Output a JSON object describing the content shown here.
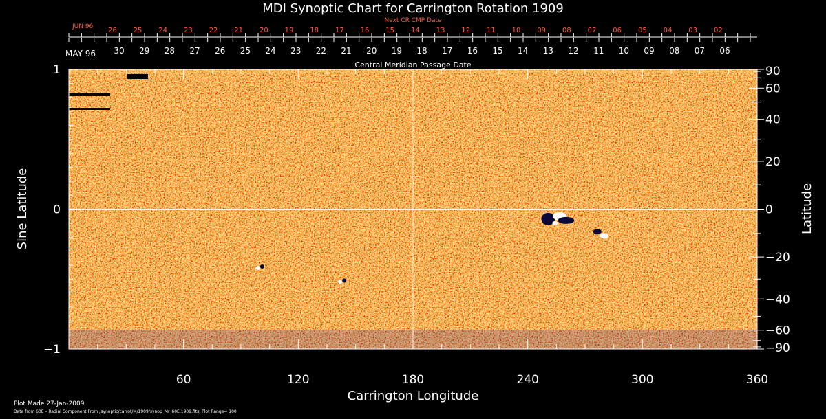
{
  "colors": {
    "background": "#000000",
    "axis": "#ffffff",
    "next_cr_dates": "#ff5a3a",
    "field_positive": "#ffffff",
    "field_negative": "#0a0a3a",
    "field_background": "#ef5a1a"
  },
  "chart_data": {
    "type": "heatmap",
    "title": "MDI Synoptic Chart for Carrington Rotation 1909",
    "xlabel": "Carrington Longitude",
    "ylabel_left": "Sine Latitude",
    "ylabel_right": "Latitude",
    "xlim": [
      0,
      360
    ],
    "ylim": [
      -1,
      1
    ],
    "x_ticks": [
      "60",
      "120",
      "180",
      "240",
      "300",
      "360"
    ],
    "y_ticks_left": [
      "1",
      "0",
      "−1"
    ],
    "y_ticks_right": [
      "90",
      "60",
      "40",
      "20",
      "0",
      "−20",
      "−40",
      "−60",
      "−90"
    ],
    "y_ticks_right_values": [
      90,
      60,
      40,
      20,
      0,
      -20,
      -40,
      -60,
      -90
    ],
    "grid": {
      "vertical_line_at": 180,
      "horizontal_line_at": 0
    },
    "next_cr_axis": {
      "label": "Next CR CMP Date",
      "month": "JUN 96",
      "dates": [
        "26",
        "25",
        "24",
        "23",
        "22",
        "21",
        "20",
        "19",
        "18",
        "17",
        "16",
        "15",
        "14",
        "13",
        "12",
        "11",
        "10",
        "09",
        "08",
        "07",
        "06",
        "05",
        "04",
        "03",
        "02"
      ],
      "first_date_longitude": 22.8
    },
    "cmp_axis": {
      "label": "Central Meridian Passage Date",
      "month": "MAY 96",
      "dates": [
        "30",
        "29",
        "28",
        "27",
        "26",
        "25",
        "24",
        "23",
        "22",
        "21",
        "20",
        "19",
        "18",
        "17",
        "16",
        "15",
        "14",
        "13",
        "12",
        "11",
        "10",
        "09",
        "08",
        "07",
        "06"
      ],
      "first_date_longitude": 26.3
    },
    "degrees_per_day": 13.2,
    "field_range": 100,
    "active_regions": [
      {
        "longitude": 255,
        "sin_lat": -0.12,
        "description": "bipolar active region"
      },
      {
        "longitude": 280,
        "sin_lat": -0.2,
        "description": "active region trailing"
      },
      {
        "longitude": 100,
        "sin_lat": -0.42
      },
      {
        "longitude": 143,
        "sin_lat": -0.52
      }
    ]
  },
  "footer": {
    "plot_made": "Plot Made 27-Jan-2009",
    "data_note": "Data from 60E – Radial Component From /synoptic/carrot/M/1909/synop_Mr_60E.1909.fits; Plot Range=  100"
  }
}
